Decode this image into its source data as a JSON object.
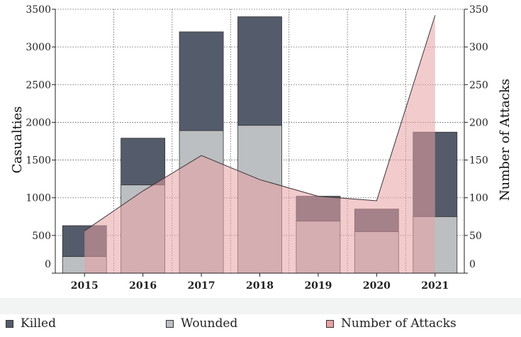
{
  "chart_data": {
    "type": "bar",
    "categories": [
      "2015",
      "2016",
      "2017",
      "2018",
      "2019",
      "2020",
      "2021"
    ],
    "series": [
      {
        "name": "Killed",
        "values": [
          410,
          620,
          1310,
          1440,
          330,
          300,
          1120
        ]
      },
      {
        "name": "Wounded",
        "values": [
          220,
          1170,
          1890,
          1960,
          690,
          550,
          750
        ]
      },
      {
        "name": "Number of Attacks",
        "values": [
          56,
          109,
          156,
          124,
          102,
          96,
          342
        ]
      }
    ],
    "stacked": [
      "Killed",
      "Wounded"
    ],
    "ylabel": "Casualties",
    "y2label": "Number of Attacks",
    "ylim": [
      0,
      3500
    ],
    "y2lim": [
      0,
      350
    ],
    "yticks": [
      0,
      500,
      1000,
      1500,
      2000,
      2500,
      3000,
      3500
    ],
    "y2ticks": [
      0,
      50,
      100,
      150,
      200,
      250,
      300,
      350
    ],
    "grid": true,
    "legend_position": "bottom",
    "colors": {
      "Killed": "#545b6a",
      "Wounded": "#bcbfc1",
      "Number of Attacks": "#e8a0a4",
      "attacks_line": "#3a3436"
    }
  }
}
